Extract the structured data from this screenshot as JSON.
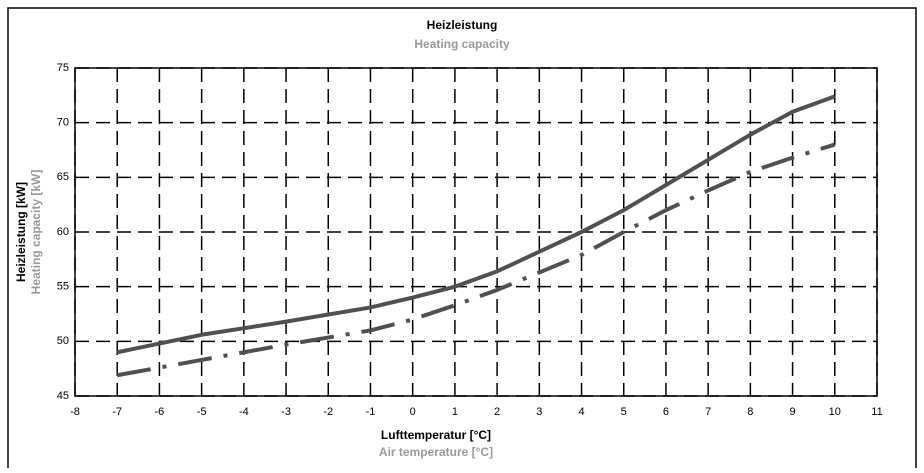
{
  "chart_data": {
    "type": "line",
    "title": "Heizleistung",
    "subtitle": "Heating capacity",
    "ylabel": "Heizleistung [kW]",
    "ylabel_en": "Heating capacity [kW]",
    "xlabel": "Lufttemperatur [°C]",
    "xlabel_en": "Air temperature [°C]",
    "xlim": [
      -8,
      11
    ],
    "xticks": [
      -8,
      -7,
      -6,
      -5,
      -4,
      -3,
      -2,
      -1,
      0,
      1,
      2,
      3,
      4,
      5,
      6,
      7,
      8,
      9,
      10,
      11
    ],
    "ylim": [
      45,
      75
    ],
    "yticks": [
      45,
      50,
      55,
      60,
      65,
      70,
      75
    ],
    "grid": true,
    "series": [
      {
        "color": "#505050",
        "style": "solid",
        "x": [
          -7,
          -5,
          -3,
          -1,
          0,
          1,
          2,
          3,
          4,
          5,
          6,
          7,
          8,
          9,
          10
        ],
        "values": [
          49.0,
          50.6,
          51.8,
          53.1,
          54.0,
          55.0,
          56.4,
          58.2,
          60.0,
          62.0,
          64.3,
          66.6,
          68.9,
          71.0,
          72.4
        ]
      },
      {
        "color": "#505050",
        "style": "dashdot",
        "x": [
          -7,
          -5,
          -3,
          -1,
          0,
          1,
          2,
          3,
          4,
          5,
          6,
          7,
          8,
          9,
          10
        ],
        "values": [
          46.9,
          48.3,
          49.7,
          51.0,
          52.0,
          53.3,
          54.7,
          56.3,
          57.9,
          60.0,
          62.0,
          63.8,
          65.5,
          66.8,
          68.0
        ]
      }
    ]
  }
}
